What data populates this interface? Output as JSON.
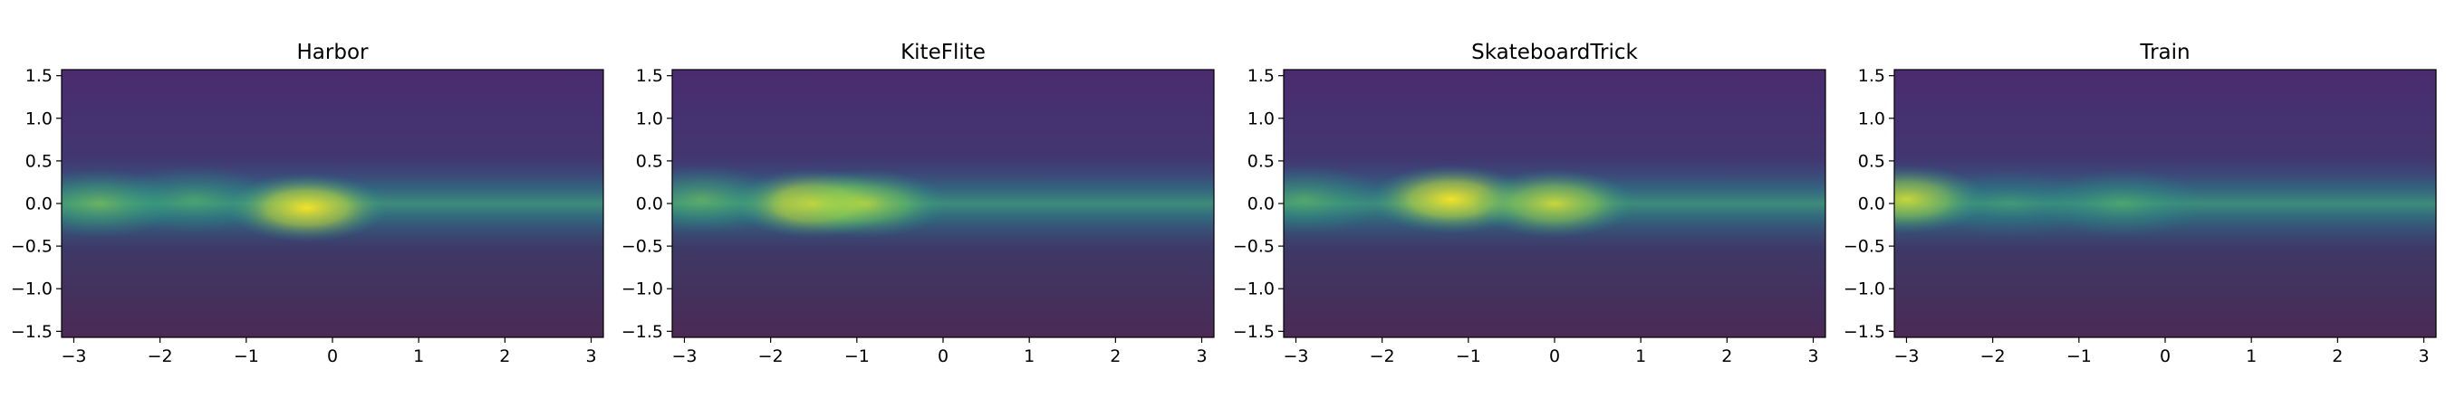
{
  "figure": {
    "background": "#ffffff"
  },
  "chart_data": [
    {
      "type": "heatmap",
      "title": "Harbor",
      "xlim": [
        -3.1416,
        3.1416
      ],
      "ylim": [
        -1.5708,
        1.5708
      ],
      "xticks": [
        -3,
        -2,
        -1,
        0,
        1,
        2,
        3
      ],
      "yticks": [
        -1.5,
        -1.0,
        -0.5,
        0.0,
        0.5,
        1.0,
        1.5
      ],
      "grid": false,
      "colormap": "viridis",
      "background_image": "equirectangular harbor scene",
      "band_center_y": 0.0,
      "band_halfwidth_y": 0.35,
      "hotspots": [
        {
          "x": -0.3,
          "y": -0.05,
          "intensity": 1.0
        },
        {
          "x": -2.7,
          "y": 0.0,
          "intensity": 0.6
        },
        {
          "x": -1.6,
          "y": 0.05,
          "intensity": 0.45
        }
      ]
    },
    {
      "type": "heatmap",
      "title": "KiteFlite",
      "xlim": [
        -3.1416,
        3.1416
      ],
      "ylim": [
        -1.5708,
        1.5708
      ],
      "xticks": [
        -3,
        -2,
        -1,
        0,
        1,
        2,
        3
      ],
      "yticks": [
        -1.5,
        -1.0,
        -0.5,
        0.0,
        0.5,
        1.0,
        1.5
      ],
      "grid": false,
      "colormap": "viridis",
      "background_image": "equirectangular park scene with building",
      "band_center_y": 0.0,
      "band_halfwidth_y": 0.35,
      "hotspots": [
        {
          "x": -1.5,
          "y": 0.0,
          "intensity": 1.0
        },
        {
          "x": -0.9,
          "y": 0.0,
          "intensity": 0.8
        },
        {
          "x": -2.8,
          "y": 0.05,
          "intensity": 0.55
        }
      ]
    },
    {
      "type": "heatmap",
      "title": "SkateboardTrick",
      "xlim": [
        -3.1416,
        3.1416
      ],
      "ylim": [
        -1.5708,
        1.5708
      ],
      "xticks": [
        -3,
        -2,
        -1,
        0,
        1,
        2,
        3
      ],
      "yticks": [
        -1.5,
        -1.0,
        -0.5,
        0.0,
        0.5,
        1.0,
        1.5
      ],
      "grid": false,
      "colormap": "viridis",
      "background_image": "equirectangular skate park scene",
      "band_center_y": 0.0,
      "band_halfwidth_y": 0.35,
      "hotspots": [
        {
          "x": -1.2,
          "y": 0.05,
          "intensity": 1.0
        },
        {
          "x": 0.0,
          "y": 0.0,
          "intensity": 0.9
        },
        {
          "x": -2.9,
          "y": 0.05,
          "intensity": 0.5
        }
      ]
    },
    {
      "type": "heatmap",
      "title": "Train",
      "xlim": [
        -3.1416,
        3.1416
      ],
      "ylim": [
        -1.5708,
        1.5708
      ],
      "xticks": [
        -3,
        -2,
        -1,
        0,
        1,
        2,
        3
      ],
      "yticks": [
        -1.5,
        -1.0,
        -0.5,
        0.0,
        0.5,
        1.0,
        1.5
      ],
      "grid": false,
      "colormap": "viridis",
      "background_image": "equirectangular beach and train scene",
      "band_center_y": 0.0,
      "band_halfwidth_y": 0.35,
      "hotspots": [
        {
          "x": -3.0,
          "y": 0.05,
          "intensity": 0.9
        },
        {
          "x": -0.5,
          "y": 0.0,
          "intensity": 0.45
        },
        {
          "x": -1.8,
          "y": 0.0,
          "intensity": 0.3
        }
      ]
    }
  ]
}
